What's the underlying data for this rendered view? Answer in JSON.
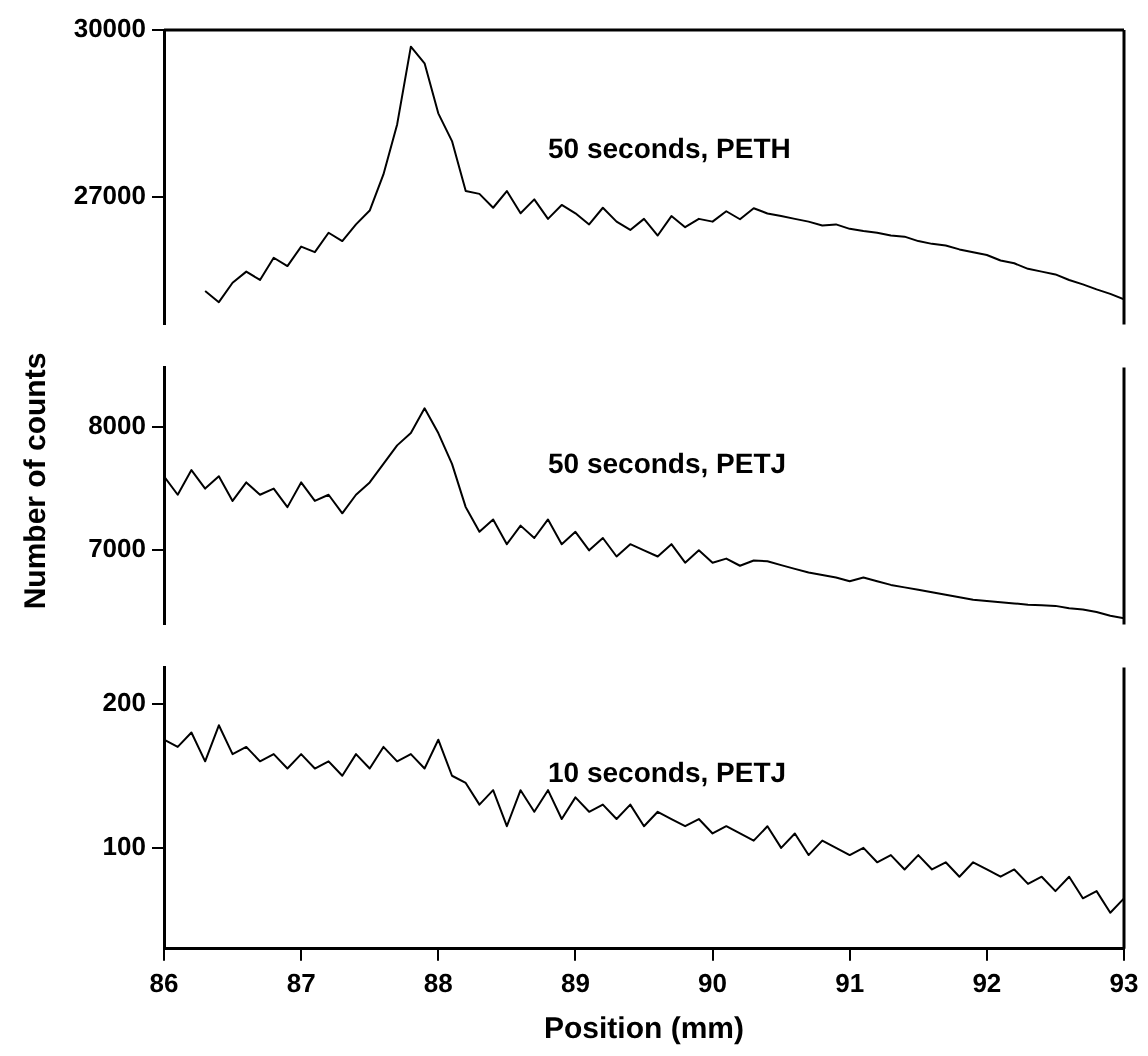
{
  "chart_data": [
    {
      "type": "line",
      "tick_labels": "y",
      "marker": "none",
      "line_style": "solid",
      "grid": false,
      "legend": false,
      "xlim": [
        86,
        93
      ],
      "ylim": [
        24700,
        30000
      ],
      "yticks": [
        27000,
        30000
      ],
      "x": [
        86.3,
        86.4,
        86.5,
        86.6,
        86.7,
        86.8,
        86.9,
        87.0,
        87.1,
        87.2,
        87.3,
        87.4,
        87.5,
        87.6,
        87.7,
        87.8,
        87.9,
        88.0,
        88.1,
        88.2,
        88.3,
        88.4,
        88.5,
        88.6,
        88.7,
        88.8,
        88.9,
        89.0,
        89.1,
        89.2,
        89.3,
        89.4,
        89.5,
        89.6,
        89.7,
        89.8,
        89.9,
        90.0,
        90.1,
        90.2,
        90.3,
        90.4,
        90.5,
        90.6,
        90.7,
        90.8,
        90.9,
        91.0,
        91.1,
        91.2,
        91.3,
        91.4,
        91.5,
        91.6,
        91.7,
        91.8,
        91.9,
        92.0,
        92.1,
        92.2,
        92.3,
        92.4,
        92.5,
        92.6,
        92.7,
        92.8,
        92.9,
        93.0
      ],
      "series": [
        {
          "color": "#000000",
          "values": [
            25300,
            25100,
            25450,
            25650,
            25500,
            25900,
            25750,
            26100,
            26000,
            26350,
            26200,
            26500,
            26750,
            27400,
            28300,
            29700,
            29400,
            28500,
            28000,
            27100,
            27050,
            26800,
            27100,
            26700,
            26950,
            26600,
            26850,
            26700,
            26500,
            26800,
            26550,
            26400,
            26600,
            26300,
            26650,
            26450,
            26600,
            26550,
            26737,
            26593,
            26790,
            26697,
            26650,
            26600,
            26550,
            26480,
            26500,
            26420,
            26380,
            26350,
            26300,
            26280,
            26200,
            26150,
            26120,
            26050,
            26000,
            25950,
            25850,
            25800,
            25700,
            25650,
            25600,
            25500,
            25420,
            25330,
            25250,
            25150
          ]
        }
      ],
      "annotations": [
        "50 seconds, PETH"
      ]
    },
    {
      "type": "line",
      "tick_labels": "y",
      "marker": "none",
      "line_style": "solid",
      "grid": false,
      "legend": false,
      "ylabel": "Number of counts",
      "xlim": [
        86,
        93
      ],
      "ylim": [
        6400,
        8480
      ],
      "yticks": [
        7000,
        8000
      ],
      "x": [
        86.0,
        86.1,
        86.2,
        86.3,
        86.4,
        86.5,
        86.6,
        86.7,
        86.8,
        86.9,
        87.0,
        87.1,
        87.2,
        87.3,
        87.4,
        87.5,
        87.6,
        87.7,
        87.8,
        87.9,
        88.0,
        88.1,
        88.2,
        88.3,
        88.4,
        88.5,
        88.6,
        88.7,
        88.8,
        88.9,
        89.0,
        89.1,
        89.2,
        89.3,
        89.4,
        89.5,
        89.6,
        89.7,
        89.8,
        89.9,
        90.0,
        90.1,
        90.2,
        90.3,
        90.4,
        90.5,
        90.6,
        90.7,
        90.8,
        90.9,
        91.0,
        91.1,
        91.2,
        91.3,
        91.4,
        91.5,
        91.6,
        91.7,
        91.8,
        91.9,
        92.0,
        92.1,
        92.2,
        92.3,
        92.4,
        92.5,
        92.6,
        92.7,
        92.8,
        92.9,
        93.0
      ],
      "series": [
        {
          "color": "#000000",
          "values": [
            7600,
            7450,
            7650,
            7500,
            7600,
            7400,
            7550,
            7450,
            7500,
            7350,
            7550,
            7400,
            7450,
            7300,
            7450,
            7550,
            7700,
            7850,
            7950,
            8150,
            7950,
            7700,
            7350,
            7150,
            7250,
            7050,
            7200,
            7100,
            7250,
            7050,
            7150,
            7000,
            7100,
            6950,
            7050,
            7000,
            6950,
            7050,
            6900,
            7000,
            6900,
            6933,
            6875,
            6918,
            6912,
            6880,
            6850,
            6820,
            6800,
            6780,
            6750,
            6780,
            6750,
            6720,
            6700,
            6680,
            6660,
            6640,
            6620,
            6600,
            6590,
            6580,
            6570,
            6560,
            6555,
            6550,
            6530,
            6520,
            6500,
            6470,
            6450
          ]
        }
      ],
      "annotations": [
        "50 seconds, PETJ"
      ]
    },
    {
      "type": "line",
      "marker": "none",
      "line_style": "solid",
      "grid": false,
      "legend": false,
      "xlabel": "Position (mm)",
      "xlim": [
        86,
        93
      ],
      "xticks": [
        86,
        87,
        88,
        89,
        90,
        91,
        92,
        93
      ],
      "ylim": [
        30,
        225
      ],
      "yticks": [
        100,
        200
      ],
      "x": [
        86.0,
        86.1,
        86.2,
        86.3,
        86.4,
        86.5,
        86.6,
        86.7,
        86.8,
        86.9,
        87.0,
        87.1,
        87.2,
        87.3,
        87.4,
        87.5,
        87.6,
        87.7,
        87.8,
        87.9,
        88.0,
        88.1,
        88.2,
        88.3,
        88.4,
        88.5,
        88.6,
        88.7,
        88.8,
        88.9,
        89.0,
        89.1,
        89.2,
        89.3,
        89.4,
        89.5,
        89.6,
        89.7,
        89.8,
        89.9,
        90.0,
        90.1,
        90.2,
        90.3,
        90.4,
        90.5,
        90.6,
        90.7,
        90.8,
        90.9,
        91.0,
        91.1,
        91.2,
        91.3,
        91.4,
        91.5,
        91.6,
        91.7,
        91.8,
        91.9,
        92.0,
        92.1,
        92.2,
        92.3,
        92.4,
        92.5,
        92.6,
        92.7,
        92.8,
        92.9,
        93.0
      ],
      "series": [
        {
          "color": "#000000",
          "values": [
            175,
            170,
            180,
            160,
            185,
            165,
            170,
            160,
            165,
            155,
            165,
            155,
            160,
            150,
            165,
            155,
            170,
            160,
            165,
            155,
            175,
            150,
            145,
            130,
            140,
            115,
            140,
            125,
            140,
            120,
            135,
            125,
            130,
            120,
            130,
            115,
            125,
            120,
            115,
            120,
            110,
            115,
            110,
            105,
            115,
            100,
            110,
            95,
            105,
            100,
            95,
            100,
            90,
            95,
            85,
            95,
            85,
            90,
            80,
            90,
            85,
            80,
            85,
            75,
            80,
            70,
            80,
            65,
            70,
            55,
            65
          ]
        }
      ],
      "annotations": [
        "10 seconds, PETJ"
      ]
    }
  ]
}
